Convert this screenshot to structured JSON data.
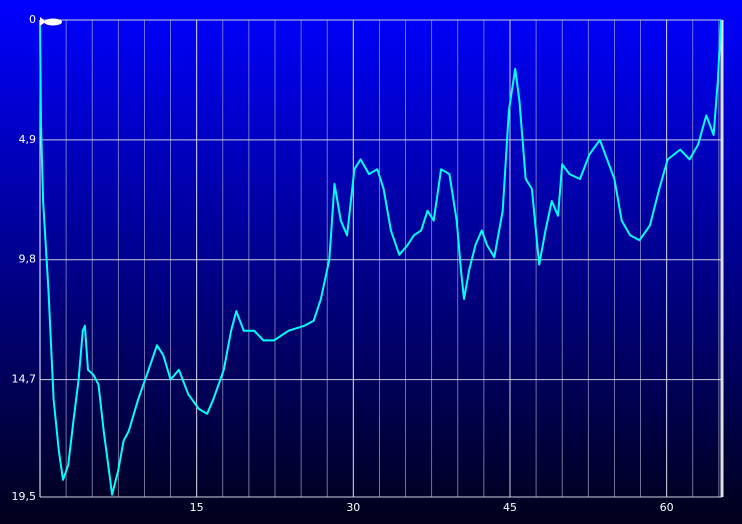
{
  "chart_data": {
    "type": "line",
    "color": "#00ffff",
    "x": [
      0,
      0.1,
      0.3,
      0.8,
      1.3,
      1.8,
      2.2,
      2.7,
      3.2,
      3.7,
      4.1,
      4.3,
      4.6,
      5.1,
      5.6,
      6.1,
      6.6,
      6.9,
      7.5,
      8.0,
      8.5,
      9.4,
      10.4,
      11.2,
      11.8,
      12.5,
      13.3,
      14.2,
      15.2,
      16.0,
      16.6,
      17.6,
      18.3,
      18.8,
      19.5,
      20.5,
      21.4,
      22.4,
      23.8,
      25.3,
      26.2,
      26.9,
      27.7,
      28.2,
      28.8,
      29.4,
      30.1,
      30.7,
      31.5,
      32.3,
      32.9,
      33.6,
      34.4,
      35.2,
      35.8,
      36.5,
      37.1,
      37.7,
      38.4,
      39.2,
      39.9,
      40.3,
      40.6,
      41.1,
      41.7,
      42.3,
      42.8,
      43.5,
      44.3,
      44.9,
      45.5,
      45.9,
      46.5,
      47.1,
      47.8,
      48.4,
      49.0,
      49.6,
      50.0,
      50.7,
      51.7,
      52.6,
      53.6,
      54.3,
      55.0,
      55.7,
      56.5,
      57.4,
      58.4,
      59.3,
      60.1,
      61.3,
      62.2,
      63.0,
      63.8,
      64.5,
      64.9,
      65.2
    ],
    "values": [
      0,
      4.3,
      7.4,
      11.0,
      15.5,
      17.6,
      18.8,
      18.2,
      16.4,
      14.7,
      12.7,
      12.5,
      14.3,
      14.5,
      14.9,
      16.8,
      18.4,
      19.4,
      18.4,
      17.2,
      16.8,
      15.5,
      14.3,
      13.3,
      13.7,
      14.7,
      14.3,
      15.3,
      15.9,
      16.1,
      15.5,
      14.3,
      12.7,
      11.9,
      12.7,
      12.7,
      13.1,
      13.1,
      12.7,
      12.5,
      12.3,
      11.4,
      9.8,
      6.7,
      8.2,
      8.8,
      6.1,
      5.7,
      6.3,
      6.1,
      6.9,
      8.6,
      9.6,
      9.2,
      8.8,
      8.6,
      7.8,
      8.2,
      6.1,
      6.3,
      8.2,
      10.2,
      11.4,
      10.2,
      9.2,
      8.6,
      9.2,
      9.7,
      7.8,
      3.7,
      2.0,
      3.3,
      6.5,
      6.9,
      10.0,
      8.6,
      7.4,
      8.0,
      5.9,
      6.3,
      6.5,
      5.5,
      4.9,
      5.7,
      6.5,
      8.2,
      8.8,
      9.0,
      8.4,
      6.9,
      5.7,
      5.3,
      5.7,
      5.1,
      3.9,
      4.7,
      2.5,
      0
    ],
    "xlim": [
      0,
      65.3
    ],
    "xticks": [
      15,
      30,
      45,
      60
    ],
    "x_grid_step": 2.5,
    "ylim": [
      0,
      19.5
    ],
    "invert_y": true,
    "yticks": [
      0,
      {
        "value": 4.9,
        "label": "4,9"
      },
      {
        "value": 9.8,
        "label": "9,8"
      },
      {
        "value": 14.7,
        "label": "14,7"
      },
      {
        "value": 19.5,
        "label": "19,5"
      }
    ],
    "grid": true
  }
}
